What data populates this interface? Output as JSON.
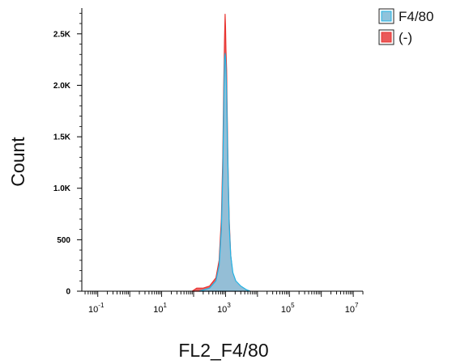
{
  "chart_data": {
    "type": "area",
    "title": "",
    "xlabel": "FL2_F4/80",
    "ylabel": "Count",
    "x_scale": "log",
    "xlim": [
      0.0316,
      20000000
    ],
    "ylim": [
      0,
      2750
    ],
    "y_ticks": [
      {
        "value": 0,
        "label": "0"
      },
      {
        "value": 500,
        "label": "500"
      },
      {
        "value": 1000,
        "label": "1.0K"
      },
      {
        "value": 1500,
        "label": "1.5K"
      },
      {
        "value": 2000,
        "label": "2.0K"
      },
      {
        "value": 2500,
        "label": "2.5K"
      }
    ],
    "x_ticks": [
      {
        "value": 0.1,
        "base": "10",
        "exp": "-1"
      },
      {
        "value": 10,
        "base": "10",
        "exp": "1"
      },
      {
        "value": 1000,
        "base": "10",
        "exp": "3"
      },
      {
        "value": 100000,
        "base": "10",
        "exp": "5"
      },
      {
        "value": 10000000,
        "base": "10",
        "exp": "7"
      }
    ],
    "grid": false,
    "legend": "top-right",
    "series": [
      {
        "name": "(-)",
        "fill": "#ea5a5a",
        "stroke": "#e8332f",
        "x": [
          90,
          126,
          200,
          316,
          500,
          630,
          740,
          820,
          880,
          930,
          970,
          1000,
          1030,
          1080,
          1130,
          1200,
          1300,
          1450,
          1700,
          2100,
          3000,
          4200,
          5000
        ],
        "y": [
          0,
          30,
          30,
          50,
          130,
          300,
          700,
          1300,
          2000,
          2450,
          2690,
          2560,
          2350,
          2150,
          1700,
          1200,
          700,
          350,
          150,
          80,
          40,
          10,
          0
        ]
      },
      {
        "name": "F4/80",
        "fill": "#8fc3dc",
        "stroke": "#21b3e4",
        "x": [
          150,
          316,
          500,
          630,
          740,
          820,
          880,
          930,
          970,
          1000,
          1030,
          1080,
          1130,
          1200,
          1300,
          1450,
          1700,
          2100,
          3000,
          4500,
          6000
        ],
        "y": [
          0,
          30,
          100,
          250,
          600,
          1150,
          1800,
          2250,
          2310,
          2270,
          2180,
          1950,
          1550,
          1150,
          650,
          350,
          180,
          100,
          50,
          15,
          0
        ]
      }
    ]
  }
}
